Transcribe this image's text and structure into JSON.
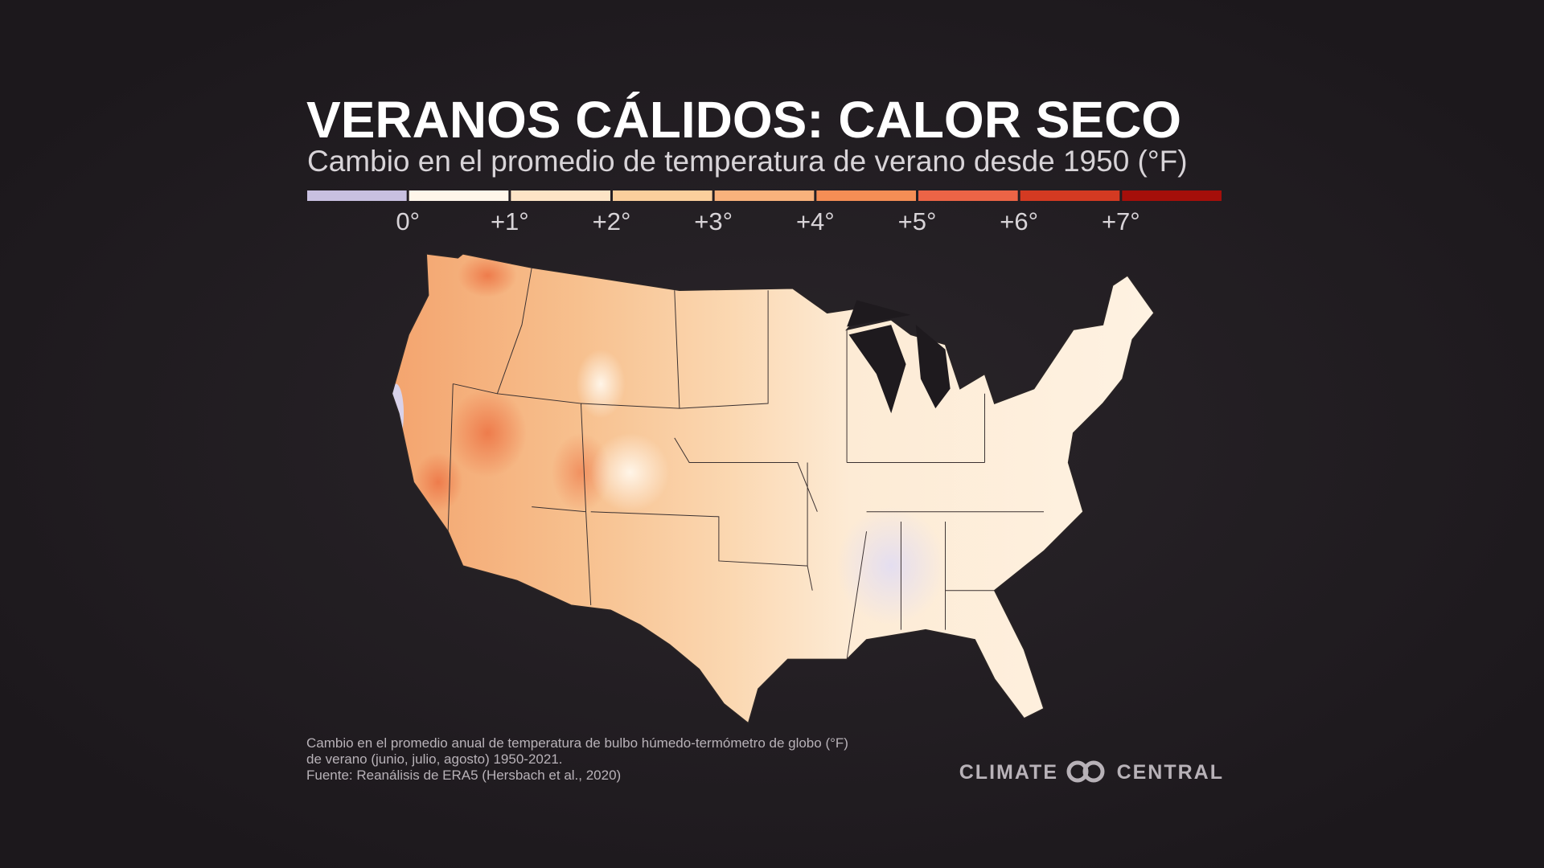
{
  "header": {
    "title": "VERANOS CÁLIDOS: CALOR SECO",
    "subtitle": "Cambio en el promedio de temperatura de verano desde 1950 (°F)"
  },
  "legend": {
    "colors": [
      "#c8c0e0",
      "#fff6ea",
      "#fde4c6",
      "#fbcf9c",
      "#f9b27c",
      "#f58e55",
      "#ec6446",
      "#d43a22",
      "#a50f0a"
    ],
    "labels": [
      "0°",
      "+1°",
      "+2°",
      "+3°",
      "+4°",
      "+5°",
      "+6°",
      "+7°"
    ]
  },
  "footnotes": [
    "Cambio en el promedio anual de temperatura de bulbo húmedo-termómetro de globo (°F)",
    "de verano (junio, julio, agosto) 1950-2021.",
    "Fuente: Reanálisis de ERA5 (Hersbach et al., 2020)"
  ],
  "logo": {
    "left": "CLIMATE",
    "right": "CENTRAL"
  }
}
